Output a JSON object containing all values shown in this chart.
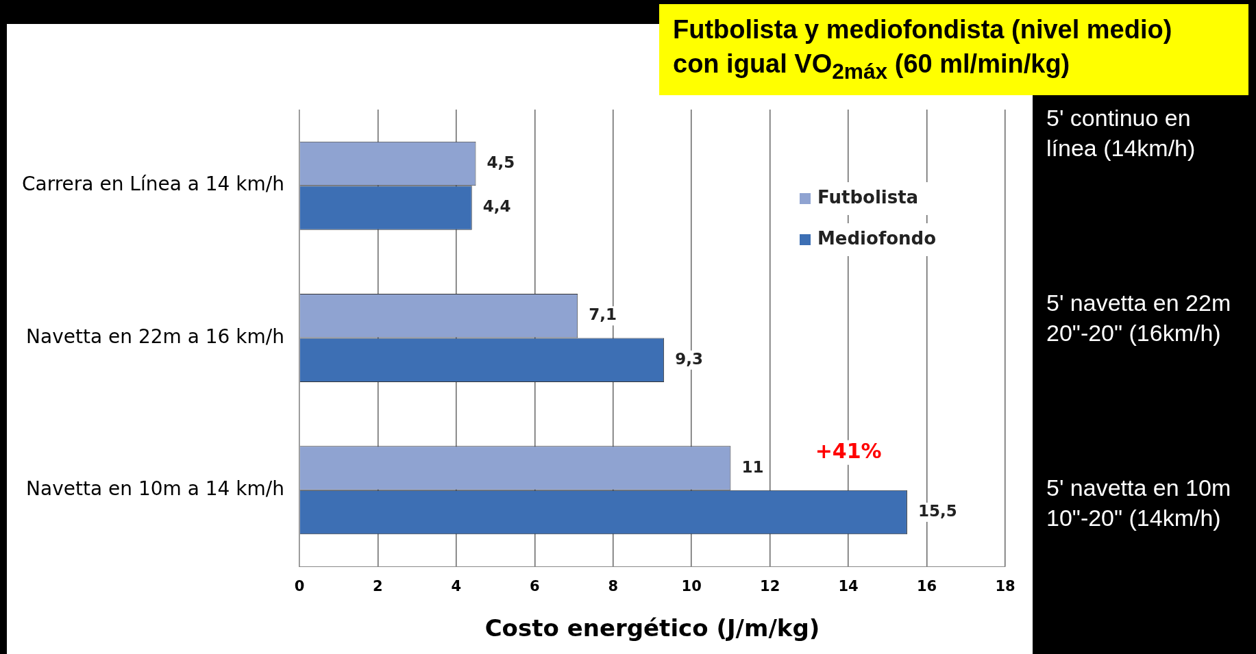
{
  "chart_data": {
    "type": "bar",
    "orientation": "horizontal",
    "title": "Futbolista y mediofondista (nivel medio) con igual VO$_{2máx}$ (60 ml/min/kg)",
    "xlabel": "Costo energético (J/m/kg)",
    "categories": [
      "Carrera en Línea a 14 km/h",
      "Navetta en 22m a 16 km/h",
      "Navetta en 10m a 14 km/h"
    ],
    "series": [
      {
        "name": "Futbolista",
        "color": "#8fa3d1",
        "values": [
          4.5,
          7.1,
          11
        ],
        "value_labels": [
          "4,5",
          "7,1",
          "11"
        ]
      },
      {
        "name": "Mediofondo",
        "color": "#3d6fb4",
        "values": [
          4.4,
          9.3,
          15.5
        ],
        "value_labels": [
          "4,4",
          "9,3",
          "15,5"
        ]
      }
    ],
    "xlim": [
      0,
      18
    ],
    "xticks": [
      0,
      2,
      4,
      6,
      8,
      10,
      12,
      14,
      16,
      18
    ],
    "grid": "x",
    "legend": "right",
    "annotations": [
      {
        "text": "+41%",
        "x": 14,
        "y": "Navetta en 10m a 14 km/h"
      },
      "5' continuo en línea (14km/h)",
      "5' navetta en 22m 20\"-20\" (16km/h)",
      "5' navetta en 10m 10\"-20\" (14km/h)"
    ]
  }
}
